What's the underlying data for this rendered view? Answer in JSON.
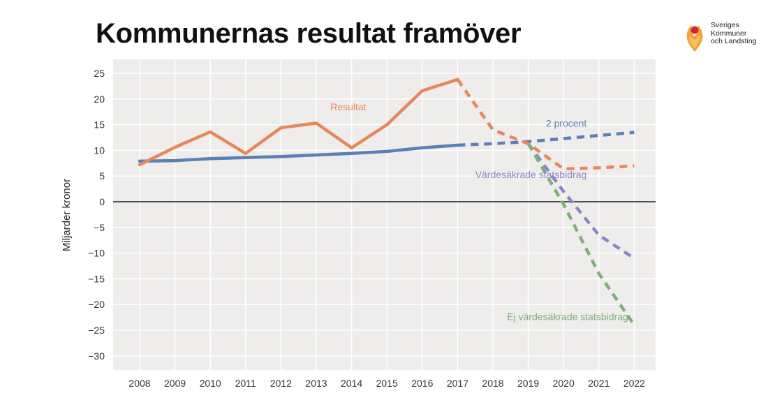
{
  "header": {
    "title": "Kommunernas resultat framöver"
  },
  "logo": {
    "icon": "skl-figure-icon",
    "lines": [
      "Sveriges",
      "Kommuner",
      "och Landsting"
    ]
  },
  "colors": {
    "plot_bg": "#efedec",
    "grid": "#ffffff",
    "zero": "#3a3a3a",
    "resultat": "#e8875a",
    "procent": "#5b7fba",
    "vardesakrade": "#8c86c6",
    "ej": "#7fae78"
  },
  "chart_data": {
    "type": "line",
    "title": "Kommunernas resultat framöver",
    "xlabel": "",
    "ylabel": "Miljarder kronor",
    "x": [
      2008,
      2009,
      2010,
      2011,
      2012,
      2013,
      2014,
      2015,
      2016,
      2017,
      2018,
      2019,
      2020,
      2021,
      2022
    ],
    "ylim": [
      -30,
      25
    ],
    "yticks": [
      25,
      20,
      15,
      10,
      5,
      0,
      -5,
      -10,
      -15,
      -20,
      -25,
      -30
    ],
    "ytick_labels": [
      "25",
      "20",
      "15",
      "10",
      "5",
      "0",
      "−5",
      "−10",
      "−15",
      "−20",
      "−25",
      "−30"
    ],
    "xtick_labels": [
      "2008",
      "2009",
      "2010",
      "2011",
      "2012",
      "2013",
      "2014",
      "2015",
      "2016",
      "2017",
      "2018",
      "2019",
      "2020",
      "2021",
      "2022"
    ],
    "grid": true,
    "series": [
      {
        "name": "Resultat",
        "key": "resultat",
        "style": "solid",
        "points": [
          [
            2008,
            7.2
          ],
          [
            2009,
            10.6
          ],
          [
            2010,
            13.6
          ],
          [
            2011,
            9.4
          ],
          [
            2012,
            14.4
          ],
          [
            2013,
            15.3
          ],
          [
            2014,
            10.5
          ],
          [
            2015,
            15.0
          ],
          [
            2016,
            21.6
          ],
          [
            2017,
            23.8
          ]
        ]
      },
      {
        "name": "Resultat (prognos)",
        "key": "resultat",
        "style": "dashed",
        "points": [
          [
            2017,
            23.8
          ],
          [
            2018,
            14.0
          ],
          [
            2019,
            11.3
          ],
          [
            2020,
            6.4
          ],
          [
            2021,
            6.6
          ],
          [
            2022,
            7.0
          ]
        ]
      },
      {
        "name": "2 procent",
        "key": "procent",
        "style": "solid",
        "points": [
          [
            2008,
            7.9
          ],
          [
            2009,
            8.0
          ],
          [
            2010,
            8.4
          ],
          [
            2011,
            8.6
          ],
          [
            2012,
            8.8
          ],
          [
            2013,
            9.1
          ],
          [
            2014,
            9.4
          ],
          [
            2015,
            9.8
          ],
          [
            2016,
            10.5
          ],
          [
            2017,
            11.0
          ]
        ]
      },
      {
        "name": "2 procent (prognos)",
        "key": "procent",
        "style": "dashed",
        "points": [
          [
            2017,
            11.0
          ],
          [
            2018,
            11.3
          ],
          [
            2019,
            11.7
          ],
          [
            2020,
            12.3
          ],
          [
            2021,
            12.9
          ],
          [
            2022,
            13.5
          ]
        ]
      },
      {
        "name": "Värdesäkrade statsbidrag",
        "key": "vardesakrade",
        "style": "dashed",
        "points": [
          [
            2019,
            11.3
          ],
          [
            2020,
            2.0
          ],
          [
            2021,
            -6.5
          ],
          [
            2022,
            -11.0
          ]
        ]
      },
      {
        "name": "Ej värdesäkrade statsbidrag",
        "key": "ej",
        "style": "dashed",
        "points": [
          [
            2019,
            11.3
          ],
          [
            2020,
            -0.5
          ],
          [
            2021,
            -14.0
          ],
          [
            2022,
            -24.0
          ]
        ]
      }
    ],
    "annotations": [
      {
        "text": "Resultat",
        "key": "resultat",
        "x": 2013.4,
        "y": 17.8
      },
      {
        "text": "2 procent",
        "key": "procent",
        "x": 2019.5,
        "y": 14.6
      },
      {
        "text": "Värdesäkrade statsbidrag",
        "key": "vardesakrade",
        "x": 2017.5,
        "y": 4.6
      },
      {
        "text": "Ej värdesäkrade statsbidrag",
        "key": "ej",
        "x": 2018.4,
        "y": -23.0
      }
    ]
  }
}
